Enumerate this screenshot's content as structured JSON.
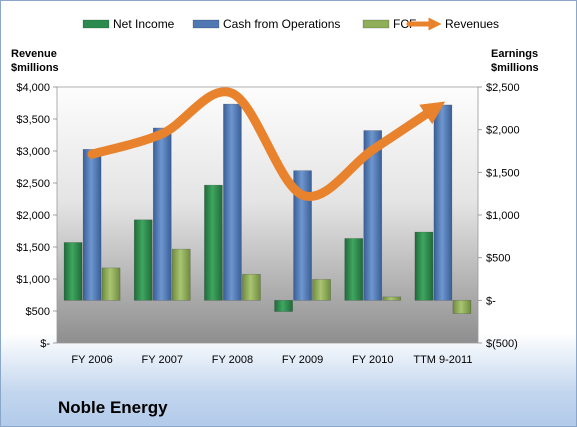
{
  "company": "Noble Energy",
  "colors": {
    "net_income": "#2e8b4f",
    "cash_from_operations": "#4f78b4",
    "fcf": "#8fae5a",
    "revenues": "#e9822d"
  },
  "chart_data": {
    "type": "bar",
    "categories": [
      "FY 2006",
      "FY 2007",
      "FY 2008",
      "FY 2009",
      "FY 2010",
      "TTM 9-2011"
    ],
    "series": [
      {
        "name": "Net Income",
        "type": "bar",
        "axis": "right",
        "values": [
          678,
          944,
          1350,
          -131,
          725,
          800
        ]
      },
      {
        "name": "Cash from Operations",
        "type": "bar",
        "axis": "right",
        "values": [
          1770,
          2020,
          2300,
          1520,
          1990,
          2290
        ]
      },
      {
        "name": "FCF",
        "type": "bar",
        "axis": "right",
        "values": [
          380,
          600,
          305,
          245,
          40,
          -155
        ]
      },
      {
        "name": "Revenues",
        "type": "line",
        "axis": "left",
        "values": [
          2950,
          3270,
          3900,
          2310,
          3020,
          3750
        ]
      }
    ],
    "left_axis": {
      "label_line1": "Revenue",
      "label_line2": "$millions",
      "ylim": [
        0,
        4000
      ],
      "ticks": [
        0,
        500,
        1000,
        1500,
        2000,
        2500,
        3000,
        3500,
        4000
      ],
      "tick_labels": [
        "$-",
        "$500",
        "$1,000",
        "$1,500",
        "$2,000",
        "$2,500",
        "$3,000",
        "$3,500",
        "$4,000"
      ]
    },
    "right_axis": {
      "label_line1": "Earnings",
      "label_line2": "$millions",
      "ylim": [
        -500,
        2500
      ],
      "ticks": [
        -500,
        0,
        500,
        1000,
        1500,
        2000,
        2500
      ],
      "tick_labels": [
        "$(500)",
        "$-",
        "$500",
        "$1,000",
        "$1,500",
        "$2,000",
        "$2,500"
      ]
    },
    "legend": [
      "Net Income",
      "Cash from Operations",
      "FCF",
      "Revenues"
    ],
    "legend_position": "top",
    "grid": false
  }
}
